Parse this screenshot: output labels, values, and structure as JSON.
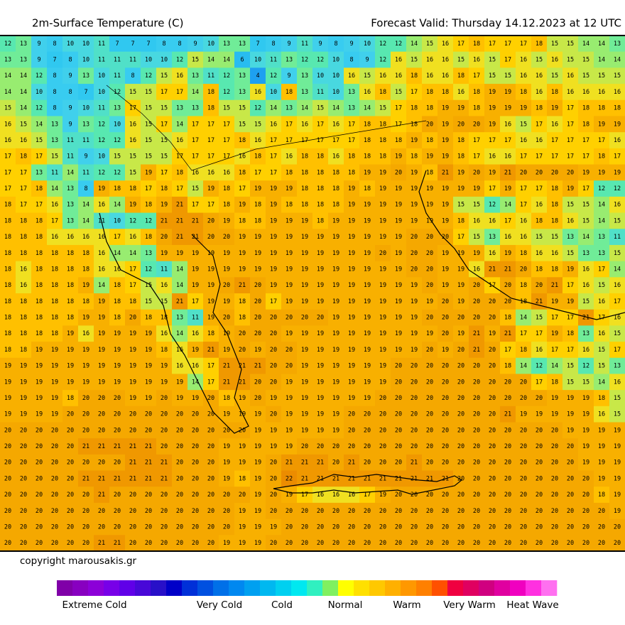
{
  "header": {
    "title": "2m-Surface Temperature (C)",
    "forecast": "Forecast Valid:  Thursday 14.12.2023 at 12 UTC"
  },
  "map": {
    "temperature_grid": [
      [
        12,
        13,
        9,
        8,
        10,
        10,
        11,
        7,
        7,
        7,
        8,
        8,
        9,
        10,
        13,
        13,
        7,
        8,
        9,
        11,
        9,
        8,
        9,
        10,
        12,
        12,
        14,
        15,
        16,
        17,
        18,
        17,
        17,
        17,
        18,
        15,
        15,
        14,
        14,
        13
      ],
      [
        13,
        13,
        9,
        7,
        8,
        10,
        11,
        11,
        11,
        10,
        10,
        12,
        15,
        14,
        14,
        6,
        10,
        11,
        13,
        12,
        12,
        10,
        8,
        9,
        12,
        16,
        15,
        16,
        16,
        15,
        16,
        15,
        17,
        16,
        15,
        16,
        15,
        15,
        14,
        14
      ],
      [
        14,
        14,
        12,
        8,
        9,
        13,
        10,
        11,
        8,
        12,
        15,
        16,
        13,
        11,
        12,
        13,
        4,
        12,
        9,
        13,
        10,
        10,
        16,
        15,
        16,
        16,
        18,
        16,
        16,
        18,
        17,
        15,
        15,
        16,
        16,
        15,
        16,
        15,
        15,
        15
      ],
      [
        14,
        14,
        10,
        8,
        8,
        7,
        10,
        12,
        15,
        15,
        17,
        17,
        14,
        18,
        12,
        13,
        16,
        10,
        18,
        13,
        11,
        10,
        13,
        16,
        18,
        15,
        17,
        18,
        18,
        16,
        18,
        19,
        19,
        18,
        16,
        18,
        16,
        16,
        16,
        16
      ],
      [
        15,
        14,
        12,
        8,
        9,
        10,
        11,
        13,
        17,
        15,
        15,
        13,
        13,
        18,
        15,
        15,
        12,
        14,
        13,
        14,
        15,
        14,
        13,
        14,
        15,
        17,
        18,
        18,
        19,
        19,
        18,
        19,
        19,
        19,
        18,
        19,
        17,
        18,
        18,
        18
      ],
      [
        16,
        15,
        14,
        13,
        9,
        13,
        12,
        10,
        16,
        15,
        17,
        14,
        17,
        17,
        17,
        15,
        15,
        16,
        17,
        16,
        17,
        16,
        17,
        18,
        18,
        17,
        18,
        20,
        19,
        20,
        20,
        19,
        16,
        15,
        17,
        16,
        17,
        18,
        19,
        19
      ],
      [
        16,
        16,
        15,
        13,
        11,
        11,
        12,
        12,
        16,
        15,
        15,
        16,
        17,
        17,
        17,
        18,
        16,
        17,
        17,
        17,
        17,
        17,
        17,
        18,
        18,
        18,
        19,
        18,
        19,
        18,
        17,
        17,
        17,
        16,
        16,
        17,
        17,
        17,
        17,
        16
      ],
      [
        17,
        18,
        17,
        15,
        11,
        9,
        10,
        15,
        15,
        15,
        15,
        17,
        17,
        17,
        17,
        16,
        18,
        17,
        16,
        18,
        18,
        16,
        18,
        18,
        18,
        19,
        18,
        19,
        19,
        18,
        17,
        16,
        16,
        17,
        17,
        17,
        17,
        17,
        18,
        17
      ],
      [
        17,
        17,
        13,
        11,
        14,
        11,
        12,
        12,
        15,
        19,
        17,
        18,
        16,
        16,
        16,
        18,
        17,
        17,
        18,
        18,
        18,
        18,
        18,
        19,
        19,
        20,
        19,
        18,
        21,
        19,
        20,
        19,
        21,
        20,
        20,
        20,
        20,
        19,
        19,
        19
      ],
      [
        17,
        17,
        18,
        14,
        13,
        8,
        19,
        18,
        18,
        17,
        18,
        17,
        15,
        19,
        18,
        17,
        19,
        19,
        19,
        18,
        18,
        18,
        19,
        18,
        19,
        19,
        19,
        19,
        19,
        19,
        19,
        17,
        19,
        17,
        17,
        18,
        19,
        17,
        12,
        12
      ],
      [
        18,
        17,
        17,
        16,
        13,
        14,
        16,
        14,
        19,
        18,
        19,
        21,
        17,
        17,
        18,
        19,
        18,
        19,
        18,
        18,
        18,
        18,
        19,
        19,
        19,
        19,
        19,
        19,
        19,
        15,
        15,
        12,
        14,
        17,
        16,
        18,
        15,
        15,
        14,
        16
      ],
      [
        18,
        18,
        18,
        17,
        13,
        14,
        11,
        10,
        12,
        12,
        21,
        21,
        21,
        20,
        19,
        18,
        18,
        19,
        19,
        19,
        18,
        19,
        19,
        19,
        19,
        19,
        19,
        19,
        19,
        18,
        16,
        16,
        17,
        16,
        18,
        18,
        16,
        15,
        14,
        15
      ],
      [
        18,
        18,
        18,
        16,
        16,
        16,
        16,
        17,
        16,
        18,
        20,
        21,
        21,
        20,
        20,
        19,
        19,
        19,
        19,
        19,
        19,
        19,
        19,
        19,
        19,
        19,
        20,
        20,
        20,
        17,
        15,
        13,
        16,
        16,
        15,
        15,
        13,
        14,
        13,
        11
      ],
      [
        18,
        18,
        18,
        18,
        18,
        18,
        16,
        14,
        14,
        13,
        19,
        19,
        19,
        19,
        19,
        19,
        19,
        19,
        19,
        19,
        19,
        19,
        19,
        19,
        20,
        19,
        20,
        20,
        19,
        19,
        19,
        16,
        19,
        18,
        16,
        16,
        15,
        13,
        13,
        15
      ],
      [
        18,
        16,
        18,
        18,
        18,
        18,
        16,
        16,
        17,
        12,
        11,
        14,
        19,
        19,
        19,
        19,
        19,
        19,
        19,
        19,
        19,
        19,
        19,
        19,
        19,
        19,
        20,
        20,
        19,
        19,
        16,
        21,
        21,
        20,
        18,
        18,
        19,
        16,
        17,
        14
      ],
      [
        18,
        16,
        18,
        18,
        18,
        19,
        14,
        18,
        17,
        15,
        16,
        14,
        19,
        19,
        20,
        21,
        20,
        19,
        19,
        19,
        19,
        19,
        19,
        19,
        19,
        19,
        19,
        20,
        19,
        19,
        20,
        17,
        20,
        18,
        20,
        21,
        17,
        16,
        15,
        16
      ],
      [
        18,
        18,
        18,
        18,
        18,
        18,
        19,
        18,
        18,
        15,
        15,
        21,
        17,
        19,
        19,
        18,
        20,
        17,
        19,
        19,
        19,
        19,
        19,
        19,
        19,
        19,
        19,
        19,
        20,
        19,
        20,
        20,
        20,
        18,
        21,
        19,
        19,
        15,
        16,
        17
      ],
      [
        18,
        18,
        18,
        18,
        18,
        19,
        19,
        18,
        20,
        18,
        18,
        13,
        11,
        19,
        20,
        18,
        20,
        20,
        20,
        20,
        20,
        19,
        19,
        19,
        19,
        19,
        19,
        20,
        20,
        20,
        20,
        20,
        18,
        14,
        15,
        17,
        17,
        21,
        17,
        16
      ],
      [
        18,
        18,
        18,
        18,
        19,
        16,
        19,
        19,
        19,
        19,
        16,
        14,
        16,
        18,
        19,
        20,
        20,
        20,
        19,
        19,
        19,
        19,
        19,
        19,
        19,
        19,
        19,
        19,
        20,
        19,
        21,
        19,
        21,
        17,
        17,
        19,
        18,
        13,
        16,
        15
      ],
      [
        18,
        18,
        19,
        19,
        19,
        19,
        19,
        19,
        19,
        19,
        18,
        16,
        19,
        21,
        19,
        20,
        19,
        20,
        20,
        19,
        19,
        19,
        19,
        19,
        19,
        19,
        19,
        20,
        19,
        20,
        21,
        20,
        17,
        18,
        16,
        17,
        17,
        16,
        15,
        17
      ],
      [
        19,
        19,
        19,
        19,
        19,
        19,
        19,
        19,
        19,
        19,
        19,
        16,
        16,
        17,
        21,
        21,
        21,
        20,
        20,
        19,
        19,
        19,
        19,
        19,
        19,
        20,
        20,
        20,
        20,
        20,
        20,
        20,
        18,
        14,
        12,
        14,
        15,
        12,
        15,
        13
      ],
      [
        19,
        19,
        19,
        19,
        19,
        19,
        19,
        19,
        19,
        19,
        19,
        19,
        14,
        17,
        21,
        21,
        20,
        20,
        19,
        19,
        19,
        19,
        19,
        19,
        19,
        20,
        20,
        20,
        20,
        20,
        20,
        20,
        20,
        20,
        17,
        18,
        15,
        15,
        14,
        16
      ],
      [
        19,
        19,
        19,
        19,
        18,
        20,
        20,
        20,
        19,
        19,
        20,
        19,
        19,
        20,
        18,
        19,
        20,
        19,
        19,
        19,
        19,
        19,
        19,
        19,
        20,
        20,
        20,
        20,
        20,
        20,
        20,
        20,
        20,
        20,
        20,
        19,
        19,
        19,
        18,
        15
      ],
      [
        19,
        19,
        19,
        19,
        20,
        20,
        20,
        20,
        20,
        20,
        20,
        20,
        20,
        20,
        19,
        19,
        19,
        20,
        19,
        19,
        19,
        19,
        20,
        20,
        20,
        20,
        20,
        20,
        20,
        20,
        20,
        20,
        21,
        19,
        19,
        19,
        19,
        19,
        16,
        15
      ],
      [
        20,
        20,
        20,
        20,
        20,
        20,
        20,
        20,
        20,
        20,
        20,
        20,
        20,
        20,
        20,
        20,
        19,
        19,
        19,
        19,
        19,
        19,
        20,
        20,
        20,
        20,
        20,
        20,
        20,
        20,
        20,
        20,
        20,
        20,
        20,
        20,
        19,
        19,
        19,
        19
      ],
      [
        20,
        20,
        20,
        20,
        20,
        21,
        21,
        21,
        21,
        21,
        20,
        20,
        20,
        20,
        19,
        19,
        19,
        19,
        19,
        20,
        20,
        20,
        20,
        20,
        20,
        20,
        20,
        20,
        20,
        20,
        20,
        20,
        20,
        20,
        20,
        20,
        20,
        19,
        19,
        19
      ],
      [
        20,
        20,
        20,
        20,
        20,
        20,
        20,
        20,
        21,
        21,
        21,
        20,
        20,
        20,
        19,
        19,
        19,
        20,
        21,
        21,
        21,
        20,
        21,
        20,
        20,
        20,
        21,
        20,
        20,
        20,
        20,
        20,
        20,
        20,
        20,
        20,
        20,
        19,
        19,
        19
      ],
      [
        20,
        20,
        20,
        20,
        20,
        21,
        21,
        21,
        21,
        21,
        21,
        20,
        20,
        20,
        19,
        18,
        19,
        20,
        22,
        21,
        21,
        21,
        21,
        21,
        21,
        21,
        21,
        21,
        21,
        20,
        20,
        20,
        20,
        20,
        20,
        20,
        20,
        20,
        19,
        19
      ],
      [
        20,
        20,
        20,
        20,
        20,
        20,
        21,
        20,
        20,
        20,
        20,
        20,
        20,
        20,
        20,
        20,
        19,
        20,
        19,
        17,
        16,
        16,
        16,
        17,
        19,
        20,
        20,
        20,
        20,
        20,
        20,
        20,
        20,
        20,
        20,
        20,
        20,
        20,
        18,
        19
      ],
      [
        20,
        20,
        20,
        20,
        20,
        20,
        20,
        20,
        20,
        20,
        20,
        20,
        20,
        20,
        20,
        19,
        19,
        20,
        20,
        20,
        20,
        20,
        20,
        20,
        20,
        20,
        20,
        20,
        20,
        20,
        20,
        20,
        20,
        20,
        20,
        20,
        20,
        20,
        20,
        19
      ],
      [
        20,
        20,
        20,
        20,
        20,
        20,
        20,
        20,
        20,
        20,
        20,
        20,
        20,
        20,
        20,
        19,
        19,
        19,
        20,
        20,
        20,
        20,
        20,
        20,
        20,
        20,
        20,
        20,
        20,
        20,
        20,
        20,
        20,
        20,
        20,
        20,
        20,
        20,
        20,
        20
      ],
      [
        20,
        20,
        20,
        20,
        20,
        20,
        21,
        21,
        20,
        20,
        20,
        20,
        20,
        20,
        19,
        19,
        19,
        20,
        20,
        20,
        20,
        20,
        20,
        20,
        20,
        20,
        20,
        20,
        20,
        20,
        20,
        20,
        20,
        20,
        20,
        20,
        20,
        20,
        20,
        20
      ]
    ],
    "temperature_palette": [
      "#1ea0f0",
      "#20b0f0",
      "#28bcf0",
      "#30c8f0",
      "#38ccf0",
      "#40d0ec",
      "#48d8e0",
      "#50e0c8",
      "#58e8b0",
      "#70ec98",
      "#98ec70",
      "#c8e848",
      "#f0e020",
      "#ffd000",
      "#ffc000",
      "#f8b000",
      "#f5a800",
      "#f09800",
      "#ec8c00"
    ]
  },
  "copyright": "copyright marousakis.gr",
  "legend": {
    "colors": [
      "#8000a8",
      "#8800c0",
      "#8c00d8",
      "#7800e8",
      "#6000e8",
      "#4808d8",
      "#2810c8",
      "#0000c8",
      "#0030d8",
      "#0050e0",
      "#0070e8",
      "#0088f0",
      "#00a0f0",
      "#00b8f0",
      "#00d0f0",
      "#00e8f0",
      "#30f0c0",
      "#80f060",
      "#ffff00",
      "#ffe000",
      "#ffc800",
      "#ffb000",
      "#ff9800",
      "#ff8000",
      "#ff5000",
      "#f00040",
      "#e00060",
      "#d00080",
      "#e000a0",
      "#f000c0",
      "#ff30e0",
      "#ff70f0"
    ],
    "labels": [
      "Extreme Cold",
      "Very Cold",
      "Cold",
      "Normal",
      "Warm",
      "Very Warm",
      "Heat Wave"
    ]
  }
}
